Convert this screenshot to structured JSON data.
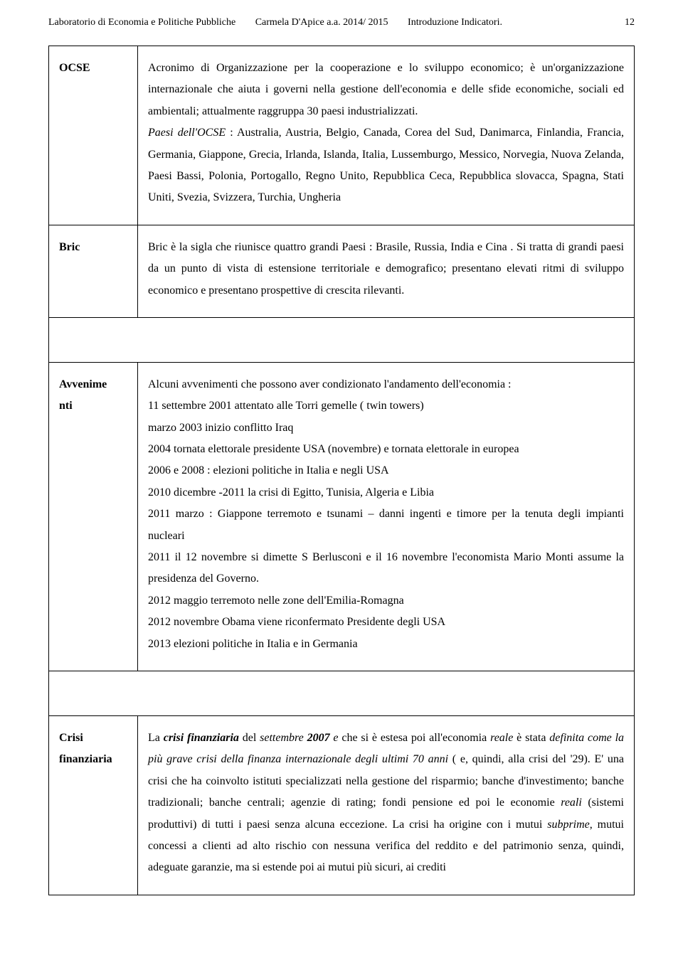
{
  "header": {
    "course": "Laboratorio di Economia e Politiche Pubbliche",
    "author": "Carmela D'Apice a.a.  2014/ 2015",
    "topic": "Introduzione Indicatori.",
    "page_number": "12"
  },
  "rows": {
    "ocse": {
      "label": "OCSE",
      "p1a": "Acronimo di Organizzazione per la cooperazione e lo sviluppo economico; è un'organizzazione internazionale che aiuta i governi nella gestione dell'economia e delle sfide economiche, sociali ed ambientali; attualmente raggruppa 30 paesi industrializzati.",
      "p1b_prefix_italic": "Paesi dell'OCSE",
      "p1b_rest": " : Australia, Austria, Belgio, Canada, Corea del Sud, Danimarca, Finlandia, Francia, Germania, Giappone, Grecia, Irlanda, Islanda, Italia, Lussemburgo, Messico, Norvegia, Nuova Zelanda,  Paesi Bassi, Polonia, Portogallo, Regno Unito, Repubblica Ceca, Repubblica slovacca, Spagna, Stati Uniti, Svezia, Svizzera, Turchia, Ungheria"
    },
    "bric": {
      "label": "Bric",
      "p1": "Bric è la sigla che riunisce quattro grandi Paesi : Brasile, Russia, India e Cina . Si tratta  di grandi paesi da un punto di vista di estensione territoriale e demografico; presentano elevati ritmi di sviluppo economico e presentano prospettive di crescita rilevanti."
    },
    "avvenimenti": {
      "label1": "Avvenime",
      "label2": "nti",
      "l1": "Alcuni avvenimenti che possono aver condizionato l'andamento dell'economia :",
      "l2": "11 settembre 2001 attentato alle Torri gemelle ( twin towers)",
      "l3": "marzo 2003 inizio conflitto Iraq",
      "l4": "2004 tornata elettorale presidente USA (novembre) e tornata elettorale in europea",
      "l5": "2006 e 2008 : elezioni politiche in Italia e negli USA",
      "l6": "2010 dicembre -2011 la crisi di Egitto, Tunisia, Algeria e Libia",
      "l7": "2011 marzo : Giappone terremoto e tsunami – danni ingenti e timore per la tenuta degli impianti nucleari",
      "l8": "2011 il 12 novembre si dimette S Berlusconi e il 16 novembre l'economista Mario Monti assume la presidenza del Governo.",
      "l9": "2012 maggio terremoto nelle zone dell'Emilia-Romagna",
      "l10": "2012  novembre Obama viene riconfermato Presidente degli USA",
      "l11": "2013 elezioni politiche in Italia e in Germania"
    },
    "crisi": {
      "label1": "Crisi",
      "label2": "finanziaria",
      "s1": "La ",
      "s2_bi": "crisi finanziaria",
      "s3": "  del ",
      "s4_i": "settembre ",
      "s5_bi": "2007",
      "s6_i": " e",
      "s7": " che si è estesa poi all'economia ",
      "s8_i": "reale",
      "s9": "  è stata ",
      "s10_i": "definita come la più grave crisi della finanza internazionale degli ultimi 70 anni",
      "s11": " ( e, quindi,  alla crisi del '29).  E' una crisi che ha coinvolto  istituti specializzati nella gestione del risparmio; banche d'investimento; banche tradizionali; banche centrali; agenzie di rating;  fondi pensione ed poi le economie ",
      "s12_i": "reali",
      "s13": " (sistemi produttivi) di tutti i paesi senza alcuna eccezione.  La crisi ha origine con i mutui ",
      "s14_i": "subprime",
      "s15": ", mutui concessi a clienti ad alto rischio con nessuna verifica del reddito e del patrimonio senza, quindi, adeguate garanzie, ma si estende poi ai mutui più sicuri, ai crediti"
    }
  }
}
